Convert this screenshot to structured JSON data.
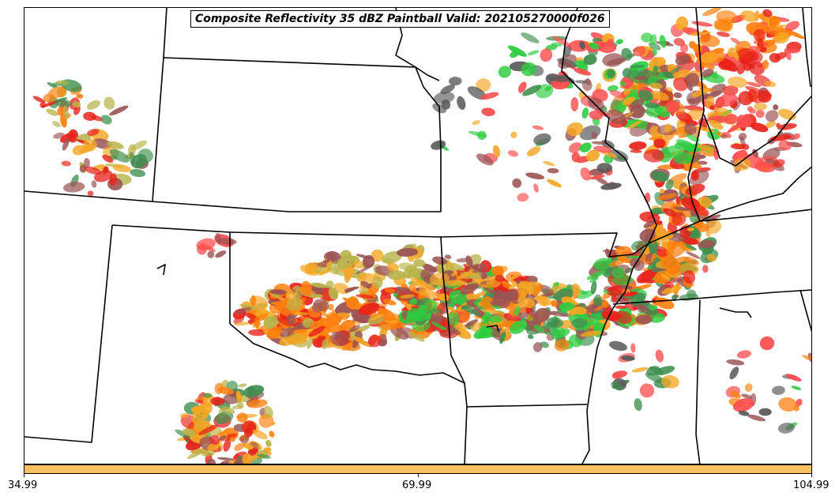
{
  "title": "Composite Reflectivity 35 dBZ Paintball Valid: 202105270000f026",
  "colorbar": {
    "color": "#ffc060",
    "ticks": [
      "34.99",
      "69.99",
      "104.99"
    ]
  },
  "member_colors": [
    "#e8221a",
    "#ff7f0e",
    "#f5a623",
    "#b8b44a",
    "#9b5454",
    "#3f8f4f",
    "#2ecc40",
    "#5a5a5a",
    "#ff4d4d",
    "#6aa84f"
  ],
  "map": {
    "projection": "Lambert Conformal",
    "region": "Central and Southern Plains / Mississippi Valley",
    "boundaries": "state outlines"
  }
}
